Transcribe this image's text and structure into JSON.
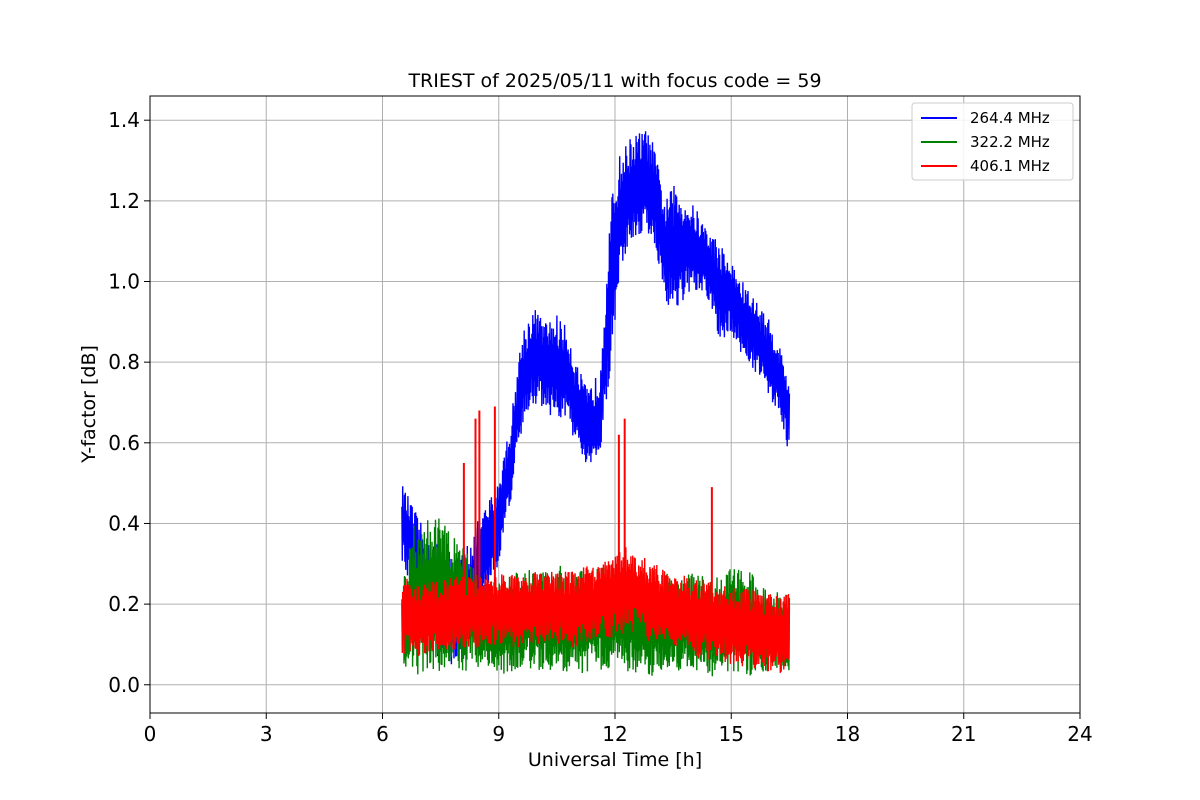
{
  "chart_data": {
    "type": "line",
    "title": "TRIEST of 2025/05/11 with focus code = 59",
    "xlabel": "Universal Time [h]",
    "ylabel": "Y-factor [dB]",
    "xlim": [
      0,
      24
    ],
    "ylim": [
      -0.07,
      1.46
    ],
    "xticks": [
      0,
      3,
      6,
      9,
      12,
      15,
      18,
      21,
      24
    ],
    "yticks": [
      0.0,
      0.2,
      0.4,
      0.6,
      0.8,
      1.0,
      1.2,
      1.4
    ],
    "ytick_labels": [
      "0.0",
      "0.2",
      "0.4",
      "0.6",
      "0.8",
      "1.0",
      "1.2",
      "1.4"
    ],
    "grid": true,
    "legend_position": "top-right",
    "series": [
      {
        "name": "264.4 MHz",
        "color": "#0000ff",
        "x": [
          6.5,
          6.7,
          7.0,
          7.5,
          8.0,
          8.3,
          8.6,
          8.8,
          9.0,
          9.3,
          9.6,
          9.9,
          10.2,
          10.5,
          10.8,
          11.0,
          11.3,
          11.6,
          11.9,
          12.1,
          12.4,
          12.8,
          13.0,
          13.3,
          13.5,
          13.8,
          14.1,
          14.4,
          14.7,
          15.0,
          15.3,
          15.6,
          15.9,
          16.2,
          16.5
        ],
        "min": [
          0.3,
          0.24,
          0.12,
          0.06,
          0.04,
          0.1,
          0.2,
          0.25,
          0.3,
          0.45,
          0.62,
          0.7,
          0.68,
          0.65,
          0.66,
          0.58,
          0.53,
          0.55,
          0.8,
          1.0,
          1.1,
          1.12,
          1.1,
          0.95,
          0.92,
          0.95,
          0.97,
          0.95,
          0.85,
          0.87,
          0.81,
          0.78,
          0.72,
          0.68,
          0.57
        ],
        "max": [
          0.5,
          0.46,
          0.4,
          0.35,
          0.32,
          0.38,
          0.43,
          0.47,
          0.52,
          0.65,
          0.88,
          0.94,
          0.9,
          0.92,
          0.88,
          0.8,
          0.73,
          0.78,
          1.2,
          1.31,
          1.36,
          1.38,
          1.34,
          1.2,
          1.24,
          1.22,
          1.18,
          1.13,
          1.1,
          1.05,
          1.0,
          0.96,
          0.92,
          0.86,
          0.76
        ]
      },
      {
        "name": "322.2 MHz",
        "color": "#008000",
        "x": [
          6.5,
          6.8,
          7.2,
          7.6,
          8.0,
          8.4,
          8.8,
          9.2,
          9.6,
          10.0,
          10.5,
          11.0,
          11.5,
          12.0,
          12.5,
          13.0,
          13.5,
          14.0,
          14.5,
          15.0,
          15.5,
          16.0,
          16.5
        ],
        "min": [
          0.06,
          0.01,
          0.02,
          0.03,
          0.03,
          0.04,
          0.03,
          0.02,
          0.04,
          0.03,
          0.04,
          0.02,
          0.03,
          0.04,
          0.03,
          0.02,
          0.03,
          0.04,
          0.02,
          0.03,
          0.02,
          0.03,
          0.03
        ],
        "max": [
          0.26,
          0.4,
          0.44,
          0.4,
          0.35,
          0.3,
          0.26,
          0.27,
          0.29,
          0.28,
          0.3,
          0.28,
          0.29,
          0.3,
          0.28,
          0.29,
          0.27,
          0.28,
          0.26,
          0.29,
          0.28,
          0.24,
          0.22
        ]
      },
      {
        "name": "406.1 MHz",
        "color": "#ff0000",
        "x": [
          6.5,
          7.0,
          7.5,
          8.0,
          8.5,
          9.0,
          9.5,
          10.0,
          10.5,
          11.0,
          11.5,
          12.0,
          12.3,
          12.6,
          13.0,
          13.5,
          14.0,
          14.5,
          15.0,
          15.5,
          16.0,
          16.5
        ],
        "min": [
          0.07,
          0.07,
          0.08,
          0.09,
          0.09,
          0.1,
          0.09,
          0.1,
          0.1,
          0.09,
          0.1,
          0.12,
          0.13,
          0.12,
          0.1,
          0.09,
          0.07,
          0.06,
          0.05,
          0.04,
          0.03,
          0.02
        ],
        "max": [
          0.27,
          0.25,
          0.26,
          0.27,
          0.27,
          0.28,
          0.27,
          0.28,
          0.28,
          0.29,
          0.3,
          0.32,
          0.35,
          0.33,
          0.3,
          0.28,
          0.27,
          0.26,
          0.25,
          0.24,
          0.23,
          0.23
        ],
        "spikes": [
          [
            8.1,
            0.55
          ],
          [
            8.4,
            0.66
          ],
          [
            8.5,
            0.68
          ],
          [
            8.75,
            0.25
          ],
          [
            8.9,
            0.69
          ],
          [
            12.1,
            0.62
          ],
          [
            12.25,
            0.66
          ],
          [
            14.5,
            0.49
          ]
        ]
      }
    ]
  }
}
